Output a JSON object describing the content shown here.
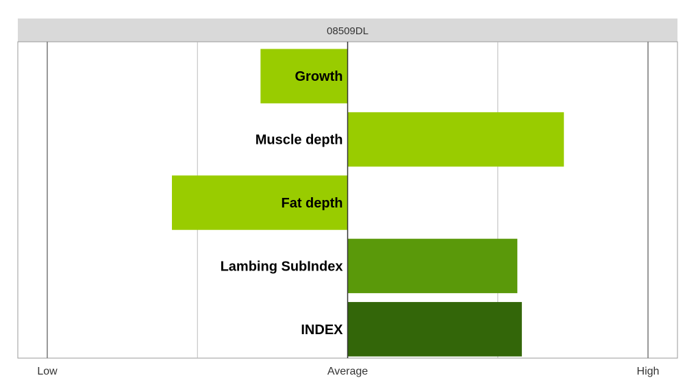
{
  "chart_data": {
    "type": "bar",
    "orientation": "horizontal",
    "title": "08509DL",
    "xlabel": "",
    "ylabel": "",
    "xlim": [
      -1,
      1
    ],
    "x_ticks": [
      {
        "value": -1,
        "label": "Low"
      },
      {
        "value": 0,
        "label": "Average"
      },
      {
        "value": 1,
        "label": "High"
      }
    ],
    "x_gridlines": [
      -1,
      -0.5,
      0,
      0.5,
      1
    ],
    "categories": [
      "Growth",
      "Muscle depth",
      "Fat depth",
      "Lambing SubIndex",
      "INDEX"
    ],
    "values": [
      -0.29,
      0.72,
      -0.585,
      0.565,
      0.58
    ],
    "colors": [
      "#99cc00",
      "#99cc00",
      "#99cc00",
      "#5a990a",
      "#336609"
    ],
    "grid": true,
    "legend": "none"
  }
}
